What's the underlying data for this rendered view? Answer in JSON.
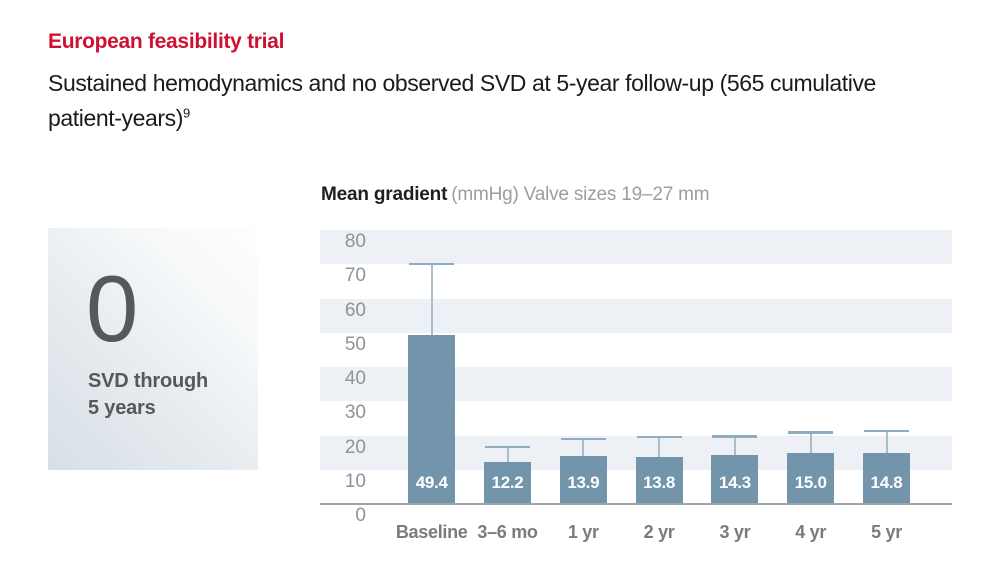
{
  "header": {
    "title": "European feasibility trial",
    "subtitle_line1": "Sustained hemodynamics and no observed SVD at 5-year follow-up (565 cumulative",
    "subtitle_line2": "patient-years)",
    "subtitle_sup": "9"
  },
  "stat_panel": {
    "value": "0",
    "label_line1": "SVD through",
    "label_line2": "5 years"
  },
  "chart_data": {
    "type": "bar",
    "title_bold": "Mean gradient",
    "title_rest": "(mmHg) Valve sizes 19–27 mm",
    "unit": "mmHg",
    "categories": [
      "Baseline",
      "3–6 mo",
      "1 yr",
      "2 yr",
      "3 yr",
      "4 yr",
      "5 yr"
    ],
    "values": [
      49.4,
      12.2,
      13.9,
      13.8,
      14.3,
      15.0,
      14.8
    ],
    "value_labels": [
      "49.4",
      "12.2",
      "13.9",
      "13.8",
      "14.3",
      "15.0",
      "14.8"
    ],
    "error_top": [
      70.5,
      17.0,
      19.3,
      19.9,
      20.1,
      21.3,
      21.7
    ],
    "ylim": [
      0,
      80
    ],
    "yticks": [
      80,
      70,
      60,
      50,
      40,
      30,
      20,
      10,
      0
    ],
    "grid": "alternating-horizontal-bands",
    "legend": "none",
    "colors": {
      "bar": "#7295ab",
      "band_light": "#edf1f5",
      "band_white": "#ffffff",
      "error_line": "#a7becd",
      "error_cap": "#8fadc2",
      "axis": "#a2a5a8",
      "ytick_text": "#8f9396",
      "xtick_text": "#797c7f",
      "bar_value_text": "#ffffff",
      "accent_red": "#ce1031",
      "stat_text": "#55595b",
      "chart_title_gray": "#9a9ea1"
    }
  }
}
